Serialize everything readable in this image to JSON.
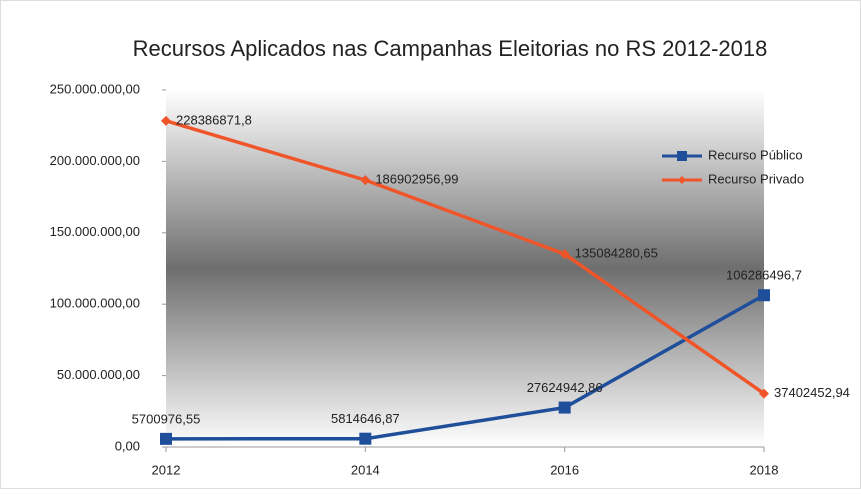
{
  "chart_data": {
    "type": "line",
    "title": "Recursos Aplicados nas Campanhas Eleitorias no RS 2012-2018",
    "categories": [
      "2012",
      "2014",
      "2016",
      "2018"
    ],
    "series": [
      {
        "name": "Recurso Público",
        "color": "#1f4e9a",
        "marker": "square",
        "values": [
          5700976.55,
          5814646.87,
          27624942.86,
          106286496.7
        ],
        "value_labels": [
          "5700976,55",
          "5814646,87",
          "27624942,86",
          "106286496,7"
        ]
      },
      {
        "name": "Recurso Privado",
        "color": "#f0552a",
        "marker": "diamond",
        "values": [
          228386871.8,
          186902956.99,
          135084280.65,
          37402452.94
        ],
        "value_labels": [
          "228386871,8",
          "186902956,99",
          "135084280,65",
          "37402452,94"
        ]
      }
    ],
    "ylim": [
      0,
      250000000
    ],
    "yticks": [
      {
        "value": 0,
        "label": "0,00"
      },
      {
        "value": 50000000,
        "label": "50.000.000,00"
      },
      {
        "value": 100000000,
        "label": "100.000.000,00"
      },
      {
        "value": 150000000,
        "label": "150.000.000,00"
      },
      {
        "value": 200000000,
        "label": "200.000.000,00"
      },
      {
        "value": 250000000,
        "label": "250.000.000,00"
      }
    ],
    "legend": "upper right"
  }
}
